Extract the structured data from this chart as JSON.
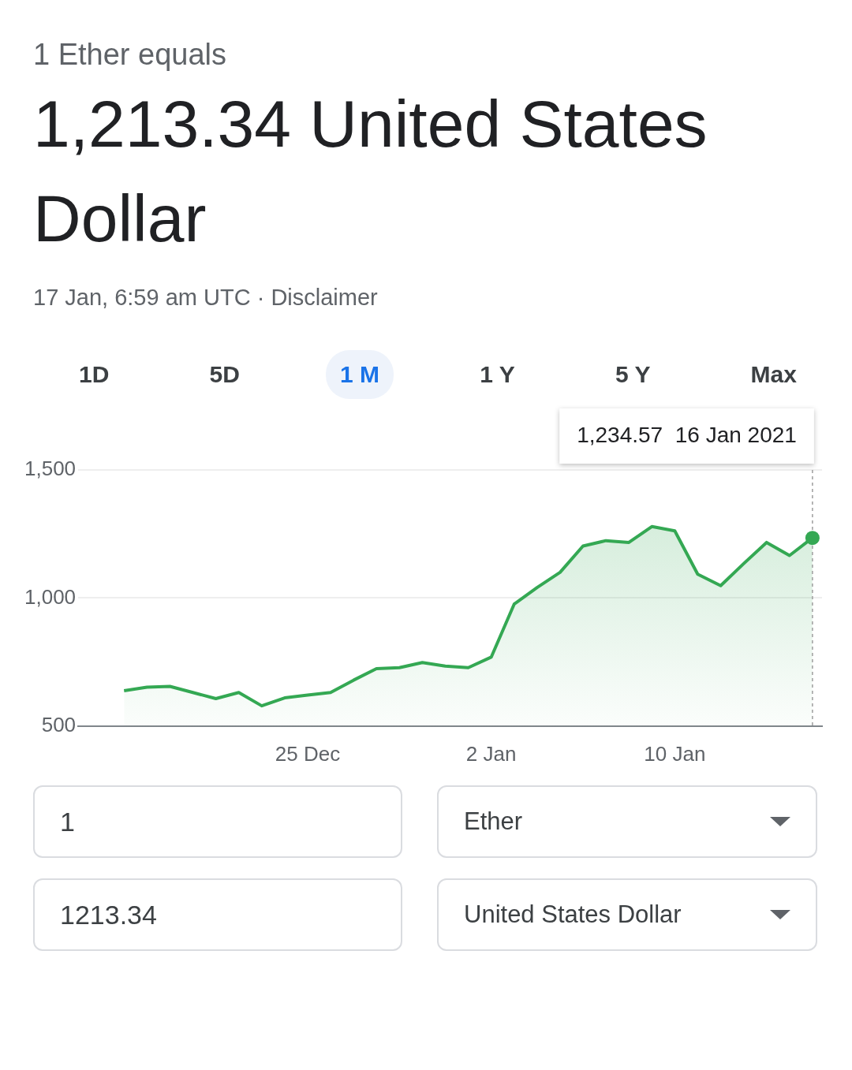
{
  "chart_data": {
    "type": "area",
    "title": "1 Ether equals",
    "subtitle": "1,213.34 United States Dollar",
    "annotations": [
      "17 Jan, 6:59 am UTC · Disclaimer",
      "1D",
      "5D",
      "1 M",
      "1 Y",
      "5 Y",
      "Max",
      "1",
      "Ether",
      "1213.34",
      "United States Dollar",
      "1,234.57  16 Jan 2021"
    ],
    "x": [
      "2020-12-17",
      "2020-12-18",
      "2020-12-19",
      "2020-12-20",
      "2020-12-21",
      "2020-12-22",
      "2020-12-23",
      "2020-12-24",
      "2020-12-25",
      "2020-12-26",
      "2020-12-27",
      "2020-12-28",
      "2020-12-29",
      "2020-12-30",
      "2020-12-31",
      "2021-01-01",
      "2021-01-02",
      "2021-01-03",
      "2021-01-04",
      "2021-01-05",
      "2021-01-06",
      "2021-01-07",
      "2021-01-08",
      "2021-01-09",
      "2021-01-10",
      "2021-01-11",
      "2021-01-12",
      "2021-01-13",
      "2021-01-14",
      "2021-01-15",
      "2021-01-16"
    ],
    "series": [
      {
        "color": "#34a853",
        "values": [
          638,
          652,
          655,
          631,
          607,
          631,
          579,
          610,
          621,
          631,
          679,
          724,
          728,
          748,
          734,
          728,
          769,
          976,
          1041,
          1100,
          1203,
          1224,
          1217,
          1279,
          1262,
          1093,
          1048,
          1134,
          1217,
          1166,
          1234.57
        ]
      }
    ],
    "xlim": [
      "2020-12-15",
      "2021-01-16T10:00"
    ],
    "xticks": [
      {
        "value": "2020-12-25",
        "label": "25 Dec"
      },
      {
        "value": "2021-01-02",
        "label": "2 Jan"
      },
      {
        "value": "2021-01-10",
        "label": "10 Jan"
      }
    ],
    "ylim": [
      500,
      1500
    ],
    "yticks": [
      {
        "value": 500,
        "label": "500"
      },
      {
        "value": 1000,
        "label": "1,000"
      },
      {
        "value": 1500,
        "label": "1,500"
      }
    ],
    "ref_lines": [
      {
        "axis": "x",
        "value": "2021-01-16",
        "color": "#9e9e9e",
        "line_style": "dashed"
      }
    ],
    "grid": "y",
    "legend": false,
    "marker": "none",
    "line_style": "solid"
  }
}
